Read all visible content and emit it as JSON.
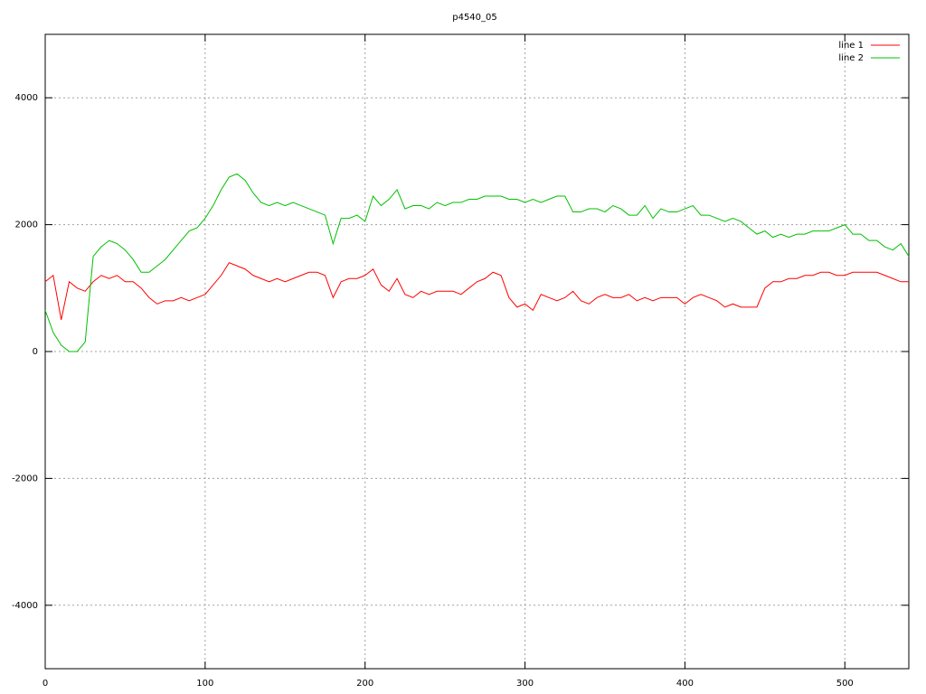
{
  "chart_data": {
    "type": "line",
    "title": "p4540_05",
    "x": [
      0,
      5,
      10,
      15,
      20,
      25,
      30,
      35,
      40,
      45,
      50,
      55,
      60,
      65,
      70,
      75,
      80,
      85,
      90,
      95,
      100,
      105,
      110,
      115,
      120,
      125,
      130,
      135,
      140,
      145,
      150,
      155,
      160,
      165,
      170,
      175,
      180,
      185,
      190,
      195,
      200,
      205,
      210,
      215,
      220,
      225,
      230,
      235,
      240,
      245,
      250,
      255,
      260,
      265,
      270,
      275,
      280,
      285,
      290,
      295,
      300,
      305,
      310,
      315,
      320,
      325,
      330,
      335,
      340,
      345,
      350,
      355,
      360,
      365,
      370,
      375,
      380,
      385,
      390,
      395,
      400,
      405,
      410,
      415,
      420,
      425,
      430,
      435,
      440,
      445,
      450,
      455,
      460,
      465,
      470,
      475,
      480,
      485,
      490,
      495,
      500,
      505,
      510,
      515,
      520,
      525,
      530,
      535,
      540
    ],
    "series": [
      {
        "name": "line 1",
        "color": "#ff0000",
        "values": [
          1100,
          1200,
          500,
          1100,
          1000,
          950,
          1100,
          1200,
          1150,
          1200,
          1100,
          1100,
          1000,
          850,
          750,
          800,
          800,
          850,
          800,
          850,
          900,
          1050,
          1200,
          1400,
          1350,
          1300,
          1200,
          1150,
          1100,
          1150,
          1100,
          1150,
          1200,
          1250,
          1250,
          1200,
          850,
          1100,
          1150,
          1150,
          1200,
          1300,
          1050,
          950,
          1150,
          900,
          850,
          950,
          900,
          950,
          950,
          950,
          900,
          1000,
          1100,
          1150,
          1250,
          1200,
          850,
          700,
          750,
          650,
          900,
          850,
          800,
          850,
          950,
          800,
          750,
          850,
          900,
          850,
          850,
          900,
          800,
          850,
          800,
          850,
          850,
          850,
          750,
          850,
          900,
          850,
          800,
          700,
          750,
          700,
          700,
          700,
          1000,
          1100,
          1100,
          1150,
          1150,
          1200,
          1200,
          1250,
          1250,
          1200,
          1200,
          1250,
          1250,
          1250,
          1250,
          1200,
          1150,
          1100,
          1100
        ]
      },
      {
        "name": "line 2",
        "color": "#00c000",
        "values": [
          650,
          300,
          100,
          0,
          0,
          150,
          1500,
          1650,
          1750,
          1700,
          1600,
          1450,
          1250,
          1250,
          1350,
          1450,
          1600,
          1750,
          1900,
          1950,
          2100,
          2300,
          2550,
          2750,
          2800,
          2700,
          2500,
          2350,
          2300,
          2350,
          2300,
          2350,
          2300,
          2250,
          2200,
          2150,
          1700,
          2100,
          2100,
          2150,
          2050,
          2450,
          2300,
          2400,
          2550,
          2250,
          2300,
          2300,
          2250,
          2350,
          2300,
          2350,
          2350,
          2400,
          2400,
          2450,
          2450,
          2450,
          2400,
          2400,
          2350,
          2400,
          2350,
          2400,
          2450,
          2450,
          2200,
          2200,
          2250,
          2250,
          2200,
          2300,
          2250,
          2150,
          2150,
          2300,
          2100,
          2250,
          2200,
          2200,
          2250,
          2300,
          2150,
          2150,
          2100,
          2050,
          2100,
          2050,
          1950,
          1850,
          1900,
          1800,
          1850,
          1800,
          1850,
          1850,
          1900,
          1900,
          1900,
          1950,
          2000,
          1850,
          1850,
          1750,
          1750,
          1650,
          1600,
          1700,
          1500
        ]
      }
    ],
    "xlim": [
      0,
      540
    ],
    "ylim": [
      -5000,
      5000
    ],
    "xticks": [
      0,
      100,
      200,
      300,
      400,
      500
    ],
    "yticks": [
      -4000,
      -2000,
      0,
      2000,
      4000
    ],
    "grid": true,
    "legend": "top-right"
  }
}
